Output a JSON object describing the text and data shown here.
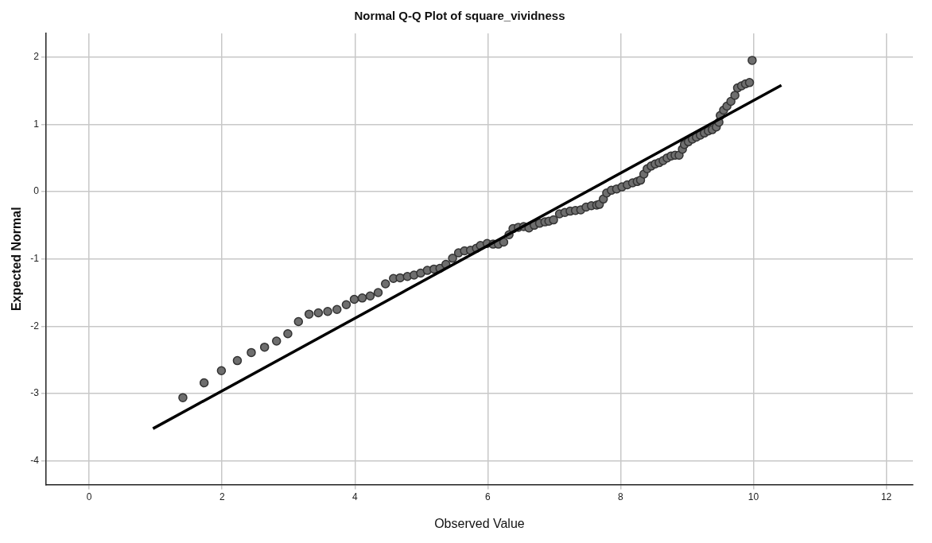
{
  "chart_data": {
    "type": "scatter",
    "title": "Normal Q-Q Plot of square_vividness",
    "xlabel": "Observed Value",
    "ylabel": "Expected Normal",
    "xlim": [
      -0.65,
      12.4
    ],
    "ylim": [
      -4.35,
      2.35
    ],
    "xticks": [
      0,
      2,
      4,
      6,
      8,
      10,
      12
    ],
    "yticks": [
      -4,
      -3,
      -2,
      -1,
      0,
      1,
      2
    ],
    "grid": true,
    "legend": false,
    "marker": "circle",
    "series": [
      {
        "color": "#6e6e6e",
        "x": [
          1.41,
          1.73,
          1.99,
          2.23,
          2.44,
          2.64,
          2.82,
          2.99,
          3.15,
          3.31,
          3.45,
          3.59,
          3.73,
          3.87,
          3.99,
          4.11,
          4.23,
          4.35,
          4.46,
          4.58,
          4.68,
          4.79,
          4.89,
          4.99,
          5.09,
          5.19,
          5.28,
          5.37,
          5.47,
          5.56,
          5.65,
          5.74,
          5.83,
          5.89,
          5.99,
          6.08,
          6.16,
          6.24,
          6.32,
          6.38,
          6.46,
          6.54,
          6.62,
          6.7,
          6.78,
          6.86,
          6.92,
          6.99,
          7.08,
          7.16,
          7.24,
          7.32,
          7.4,
          7.48,
          7.56,
          7.64,
          7.68,
          7.74,
          7.79,
          7.86,
          7.94,
          8.02,
          8.1,
          8.18,
          8.25,
          8.3,
          8.35,
          8.4,
          8.46,
          8.52,
          8.58,
          8.64,
          8.7,
          8.76,
          8.82,
          8.88,
          8.93,
          8.96,
          9.02,
          9.08,
          9.14,
          9.2,
          9.26,
          9.32,
          9.38,
          9.44,
          9.48,
          9.5,
          9.55,
          9.6,
          9.66,
          9.72,
          9.76,
          9.82,
          9.88,
          9.94,
          9.98
        ],
        "values": [
          -3.06,
          -2.84,
          -2.66,
          -2.51,
          -2.39,
          -2.31,
          -2.22,
          -2.11,
          -1.93,
          -1.82,
          -1.8,
          -1.78,
          -1.75,
          -1.68,
          -1.6,
          -1.58,
          -1.55,
          -1.5,
          -1.37,
          -1.29,
          -1.28,
          -1.26,
          -1.24,
          -1.21,
          -1.17,
          -1.15,
          -1.14,
          -1.08,
          -0.99,
          -0.91,
          -0.88,
          -0.87,
          -0.84,
          -0.8,
          -0.77,
          -0.78,
          -0.78,
          -0.75,
          -0.64,
          -0.55,
          -0.53,
          -0.52,
          -0.54,
          -0.5,
          -0.47,
          -0.45,
          -0.44,
          -0.42,
          -0.33,
          -0.31,
          -0.29,
          -0.28,
          -0.27,
          -0.23,
          -0.21,
          -0.2,
          -0.19,
          -0.11,
          -0.02,
          0.02,
          0.04,
          0.07,
          0.1,
          0.13,
          0.15,
          0.17,
          0.26,
          0.34,
          0.38,
          0.41,
          0.43,
          0.46,
          0.5,
          0.53,
          0.54,
          0.54,
          0.63,
          0.7,
          0.74,
          0.78,
          0.81,
          0.84,
          0.87,
          0.9,
          0.92,
          0.96,
          1.03,
          1.13,
          1.21,
          1.27,
          1.34,
          1.43,
          1.54,
          1.57,
          1.6,
          1.62,
          1.95
        ]
      },
      {
        "type": "line",
        "color": "#000000",
        "marker": "none",
        "x": [
          0.96,
          10.42
        ],
        "values": [
          -3.52,
          1.58
        ]
      }
    ]
  }
}
